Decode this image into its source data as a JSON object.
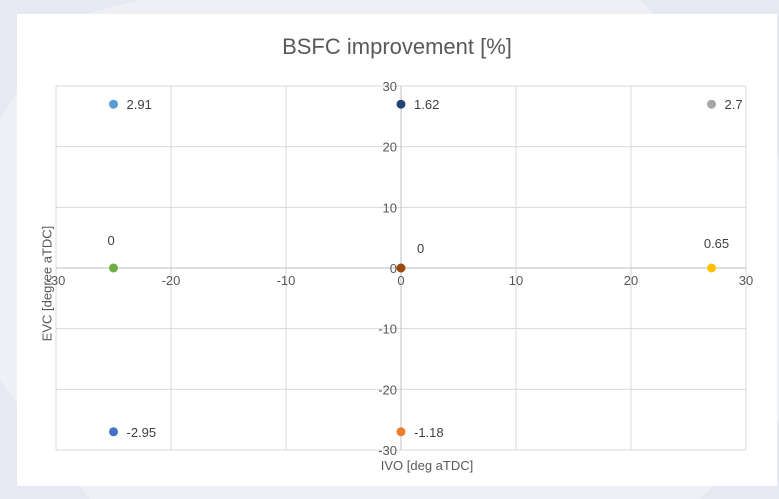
{
  "chart_data": {
    "type": "scatter",
    "title": "BSFC improvement [%]",
    "xlabel": "IVO [deg aTDC]",
    "ylabel": "EVC [degree aTDC]",
    "xlim": [
      -30,
      30
    ],
    "ylim": [
      -30,
      30
    ],
    "x_ticks": [
      "-30",
      "-20",
      "-10",
      "0",
      "10",
      "20",
      "30"
    ],
    "y_ticks": [
      "30",
      "20",
      "10",
      "0",
      "-10",
      "-20",
      "-30"
    ],
    "grid": true,
    "legend": "none",
    "points": [
      {
        "x": -25,
        "y": 27,
        "label": "2.91",
        "color": "#5b9bd5"
      },
      {
        "x": 0,
        "y": 27,
        "label": "1.62",
        "color": "#264478"
      },
      {
        "x": 27,
        "y": 27,
        "label": "2.7",
        "color": "#a5a5a5"
      },
      {
        "x": -25,
        "y": 0,
        "label": "0",
        "color": "#70ad47"
      },
      {
        "x": 0,
        "y": 0,
        "label": "0",
        "color": "#9e480e"
      },
      {
        "x": 27,
        "y": 0,
        "label": "0.65",
        "color": "#ffc000"
      },
      {
        "x": -25,
        "y": -27,
        "label": "-2.95",
        "color": "#4472c4"
      },
      {
        "x": 0,
        "y": -27,
        "label": "-1.18",
        "color": "#ed7d31"
      }
    ]
  }
}
